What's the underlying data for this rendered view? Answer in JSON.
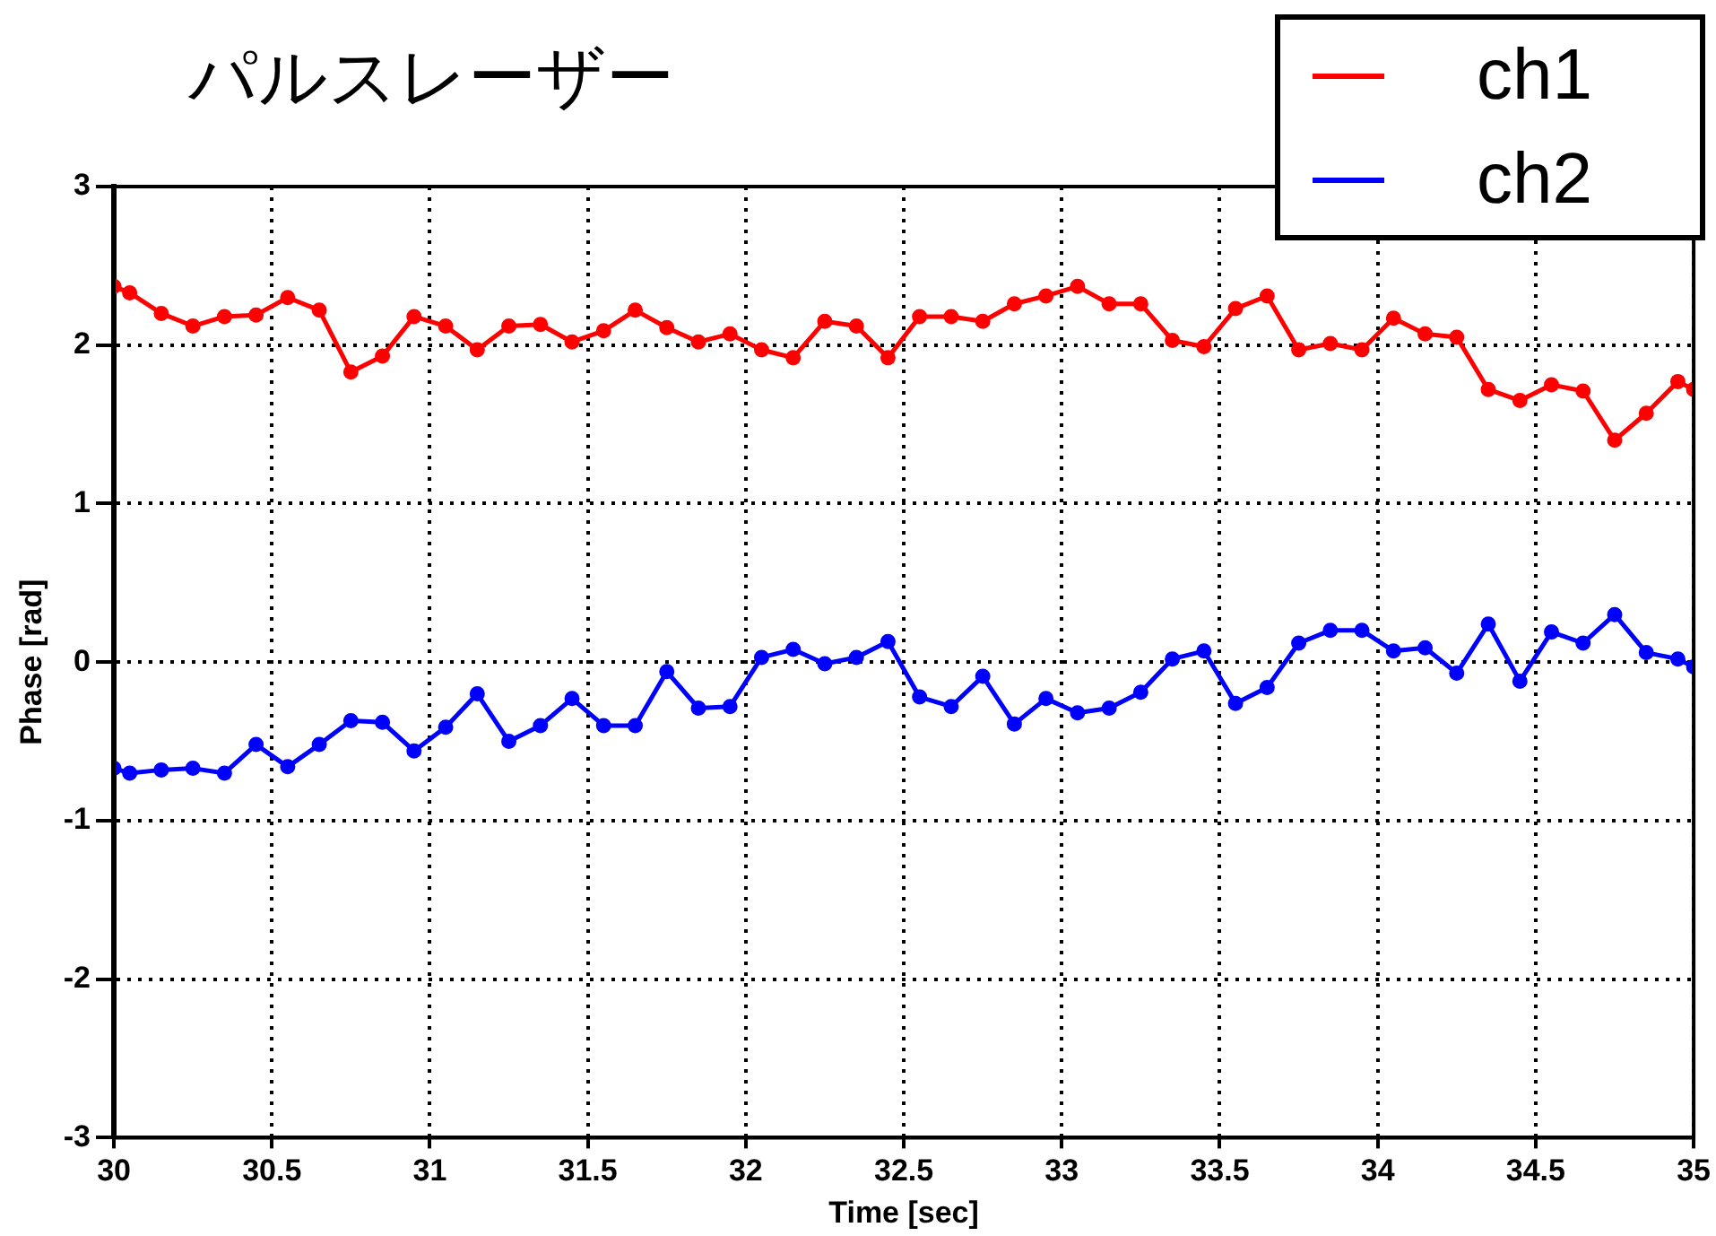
{
  "chart_data": {
    "type": "line",
    "title": "パルスレーザー",
    "xlabel": "Time [sec]",
    "ylabel": "Phase [rad]",
    "x": [
      30.0,
      30.05,
      30.15,
      30.25,
      30.35,
      30.45,
      30.55,
      30.65,
      30.75,
      30.85,
      30.95,
      31.05,
      31.15,
      31.25,
      31.35,
      31.45,
      31.55,
      31.65,
      31.75,
      31.85,
      31.95,
      32.05,
      32.15,
      32.25,
      32.35,
      32.45,
      32.55,
      32.65,
      32.75,
      32.85,
      32.95,
      33.05,
      33.15,
      33.25,
      33.35,
      33.45,
      33.55,
      33.65,
      33.75,
      33.85,
      33.95,
      34.05,
      34.15,
      34.25,
      34.35,
      34.45,
      34.55,
      34.65,
      34.75,
      34.85,
      34.95,
      35.0
    ],
    "series": [
      {
        "name": "ch1",
        "color": "#ff0000",
        "values": [
          2.37,
          2.33,
          2.2,
          2.12,
          2.18,
          2.19,
          2.3,
          2.22,
          1.83,
          1.93,
          2.18,
          2.12,
          1.97,
          2.12,
          2.13,
          2.02,
          2.09,
          2.22,
          2.11,
          2.02,
          2.07,
          1.97,
          1.92,
          2.15,
          2.12,
          1.92,
          2.18,
          2.18,
          2.15,
          2.26,
          2.31,
          2.37,
          2.26,
          2.26,
          2.03,
          1.99,
          2.23,
          2.31,
          1.97,
          2.01,
          1.97,
          2.17,
          2.07,
          2.05,
          1.72,
          1.65,
          1.75,
          1.71,
          1.4,
          1.57,
          1.77,
          1.72
        ]
      },
      {
        "name": "ch2",
        "color": "#0000ff",
        "values": [
          -0.67,
          -0.7,
          -0.68,
          -0.67,
          -0.7,
          -0.52,
          -0.66,
          -0.52,
          -0.37,
          -0.38,
          -0.56,
          -0.41,
          -0.2,
          -0.5,
          -0.4,
          -0.23,
          -0.4,
          -0.4,
          -0.06,
          -0.29,
          -0.28,
          0.03,
          0.08,
          -0.01,
          0.03,
          0.13,
          -0.22,
          -0.28,
          -0.09,
          -0.39,
          -0.23,
          -0.32,
          -0.29,
          -0.19,
          0.02,
          0.07,
          -0.26,
          -0.16,
          0.12,
          0.2,
          0.2,
          0.07,
          0.09,
          -0.07,
          0.24,
          -0.12,
          0.19,
          0.12,
          0.3,
          0.06,
          0.02,
          -0.03
        ]
      }
    ],
    "xlim": [
      30,
      35
    ],
    "xticks": [
      30,
      30.5,
      31,
      31.5,
      32,
      32.5,
      33,
      33.5,
      34,
      34.5,
      35
    ],
    "ylim": [
      -3,
      3
    ],
    "yticks": [
      -3,
      -2,
      -1,
      0,
      1,
      2,
      3
    ],
    "grid": true,
    "legend": "top right",
    "marker": "circle",
    "line_style": "solid"
  }
}
